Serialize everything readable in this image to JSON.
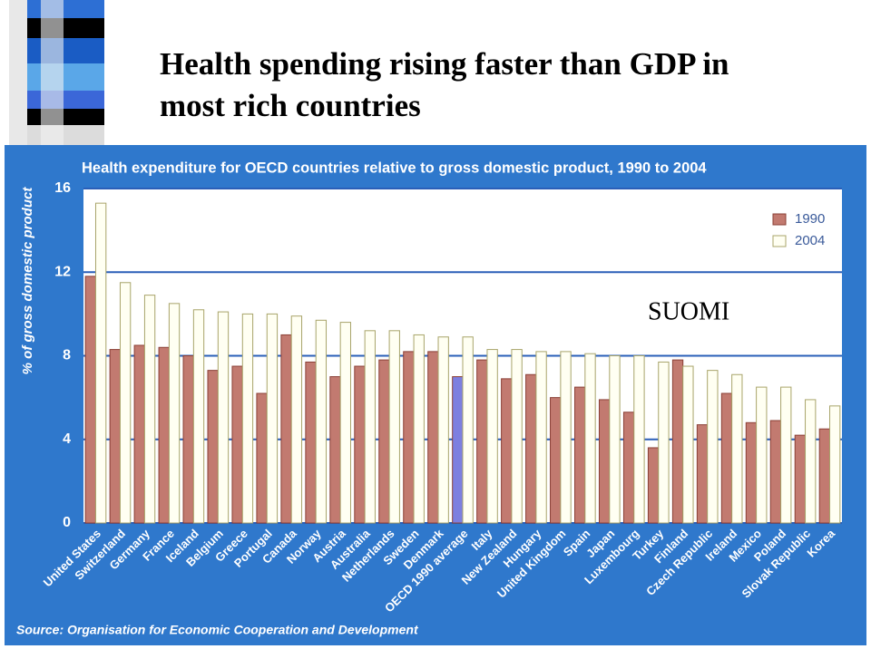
{
  "slide": {
    "title_lines": [
      "Health spending rising faster than GDP in",
      "most rich countries"
    ]
  },
  "chart_data": {
    "type": "bar",
    "title": "Health expenditure for OECD countries relative to gross domestic product, 1990 to 2004",
    "y_label": "% of gross domestic product",
    "source": "Source: Organisation for Economic Cooperation and Development",
    "annotation": "SUOMI",
    "categories": [
      "United States",
      "Switzerland",
      "Germany",
      "France",
      "Iceland",
      "Belgium",
      "Greece",
      "Portugal",
      "Canada",
      "Norway",
      "Austria",
      "Australia",
      "Netherlands",
      "Sweden",
      "Denmark",
      "OECD 1990 average",
      "Italy",
      "New Zealand",
      "Hungary",
      "United Kingdom",
      "Spain",
      "Japan",
      "Luxembourg",
      "Turkey",
      "Finland",
      "Czech Republic",
      "Ireland",
      "Mexico",
      "Poland",
      "Slovak Republic",
      "Korea"
    ],
    "series": [
      {
        "name": "1990",
        "color": "#c27a70",
        "stroke": "#8a3f35",
        "values": [
          11.8,
          8.3,
          8.5,
          8.4,
          8.0,
          7.3,
          7.5,
          6.2,
          9.0,
          7.7,
          7.0,
          7.5,
          7.8,
          8.2,
          8.2,
          7.0,
          7.8,
          6.9,
          7.1,
          6.0,
          6.5,
          5.9,
          5.3,
          3.6,
          7.8,
          4.7,
          6.2,
          4.8,
          4.9,
          4.2,
          4.5
        ],
        "highlight": {
          "index": 15,
          "color": "#7d7fe0"
        }
      },
      {
        "name": "2004",
        "color": "#fffff2",
        "stroke": "#a8a46a",
        "values": [
          15.3,
          11.5,
          10.9,
          10.5,
          10.2,
          10.1,
          10.0,
          10.0,
          9.9,
          9.7,
          9.6,
          9.2,
          9.2,
          9.0,
          8.9,
          8.9,
          8.3,
          8.3,
          8.2,
          8.2,
          8.1,
          8.0,
          8.0,
          7.7,
          7.5,
          7.3,
          7.1,
          6.5,
          6.5,
          5.9,
          5.6
        ]
      }
    ],
    "ylim": [
      0,
      16
    ],
    "yticks": [
      0,
      4,
      8,
      12,
      16
    ],
    "grid": true,
    "legend": "upper right"
  }
}
